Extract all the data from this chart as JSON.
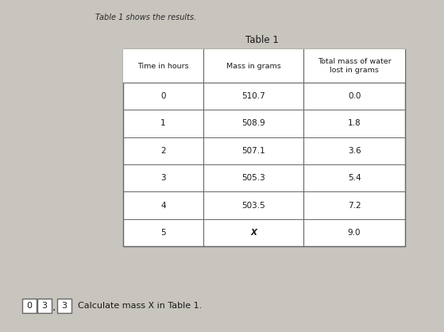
{
  "title_top": "Table 1 shows the results.",
  "table_title": "Table 1",
  "col_headers": [
    "Time in hours",
    "Mass in grams",
    "Total mass of water\nlost in grams"
  ],
  "rows": [
    [
      "0",
      "510.7",
      "0.0"
    ],
    [
      "1",
      "508.9",
      "1.8"
    ],
    [
      "2",
      "507.1",
      "3.6"
    ],
    [
      "3",
      "505.3",
      "5.4"
    ],
    [
      "4",
      "503.5",
      "7.2"
    ],
    [
      "5",
      "X",
      "9.0"
    ]
  ],
  "footer_boxes": [
    "0",
    "3",
    "3"
  ],
  "footer_text": "Calculate mass X in Table 1.",
  "bg_color": "#c8c4be",
  "table_bg": "#ffffff",
  "header_bg": "#ffffff",
  "border_color": "#666666",
  "text_color": "#1a1a1a",
  "title_top_color": "#2a2a2a"
}
